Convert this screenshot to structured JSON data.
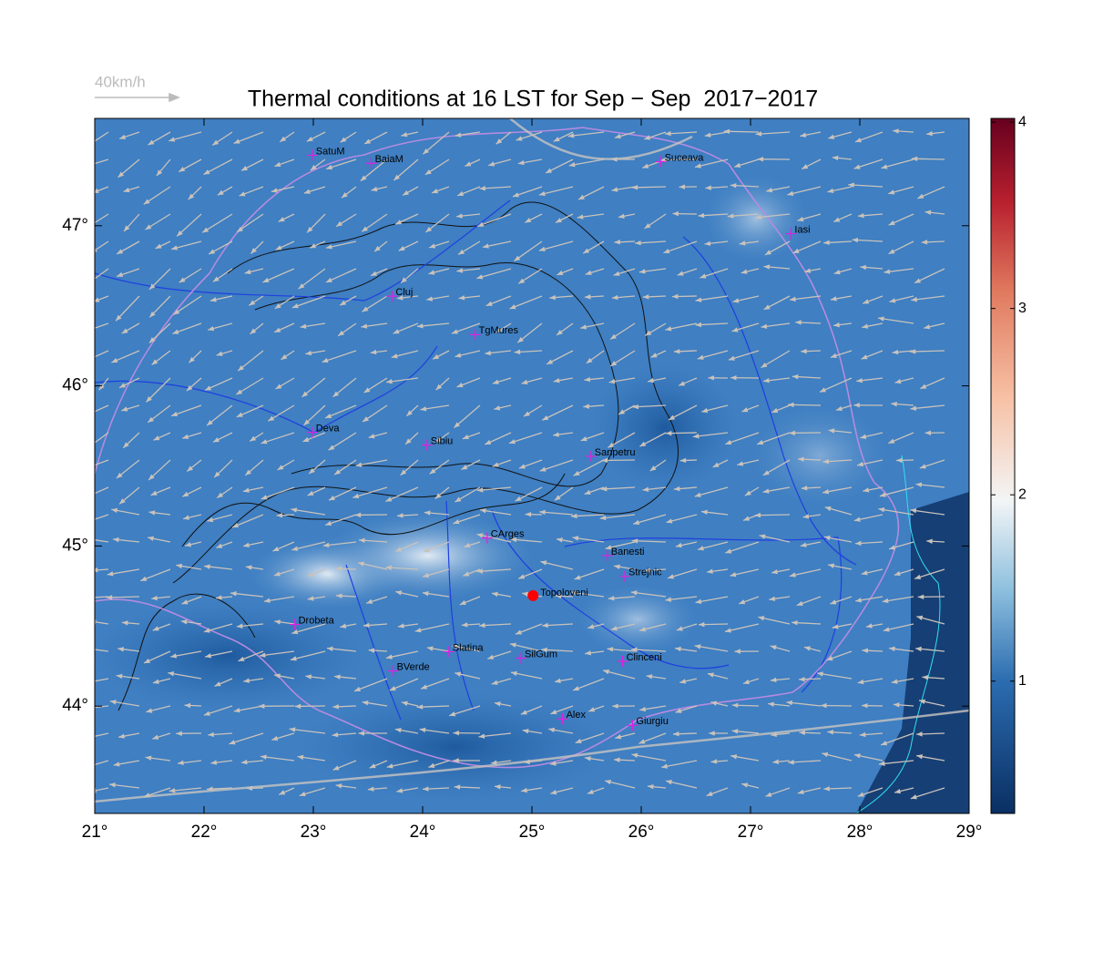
{
  "title": "Thermal conditions at 16 LST for Sep − Sep  2017−2017",
  "wind_scale_label": "40km/h",
  "map": {
    "xlim": [
      21,
      29
    ],
    "ylim": [
      43.33,
      47.67
    ],
    "xticks": [
      {
        "value": 21,
        "label": "21°"
      },
      {
        "value": 22,
        "label": "22°"
      },
      {
        "value": 23,
        "label": "23°"
      },
      {
        "value": 24,
        "label": "24°"
      },
      {
        "value": 25,
        "label": "25°"
      },
      {
        "value": 26,
        "label": "26°"
      },
      {
        "value": 27,
        "label": "27°"
      },
      {
        "value": 28,
        "label": "28°"
      },
      {
        "value": 29,
        "label": "29°"
      }
    ],
    "yticks": [
      {
        "value": 44,
        "label": "44°"
      },
      {
        "value": 45,
        "label": "45°"
      },
      {
        "value": 46,
        "label": "46°"
      },
      {
        "value": 47,
        "label": "47°"
      }
    ]
  },
  "colorbar": {
    "clim": [
      0.29,
      4.02
    ],
    "ticks": [
      1,
      2,
      3,
      4
    ]
  },
  "stations": [
    {
      "name": "SatuM",
      "lon": 22.99,
      "lat": 47.44
    },
    {
      "name": "BaiaM",
      "lon": 23.53,
      "lat": 47.39
    },
    {
      "name": "Suceava",
      "lon": 26.18,
      "lat": 47.4
    },
    {
      "name": "Iasi",
      "lon": 27.37,
      "lat": 46.95
    },
    {
      "name": "Cluj",
      "lon": 23.72,
      "lat": 46.56
    },
    {
      "name": "TgMures",
      "lon": 24.48,
      "lat": 46.32
    },
    {
      "name": "Deva",
      "lon": 22.99,
      "lat": 45.71
    },
    {
      "name": "Sibiu",
      "lon": 24.04,
      "lat": 45.63
    },
    {
      "name": "Sanpetru",
      "lon": 25.54,
      "lat": 45.56
    },
    {
      "name": "CArges",
      "lon": 24.59,
      "lat": 45.05
    },
    {
      "name": "Banesti",
      "lon": 25.69,
      "lat": 44.94
    },
    {
      "name": "Strejnic",
      "lon": 25.85,
      "lat": 44.81
    },
    {
      "name": "Drobeta",
      "lon": 22.83,
      "lat": 44.51
    },
    {
      "name": "Slatina",
      "lon": 24.24,
      "lat": 44.34
    },
    {
      "name": "SilGum",
      "lon": 24.9,
      "lat": 44.3
    },
    {
      "name": "Clinceni",
      "lon": 25.83,
      "lat": 44.28
    },
    {
      "name": "BVerde",
      "lon": 23.73,
      "lat": 44.22
    },
    {
      "name": "Alex",
      "lon": 25.28,
      "lat": 43.92
    },
    {
      "name": "Giurgiu",
      "lon": 25.92,
      "lat": 43.88
    }
  ],
  "site": {
    "name": "Topoloveni",
    "lon": 25.01,
    "lat": 44.69
  }
}
